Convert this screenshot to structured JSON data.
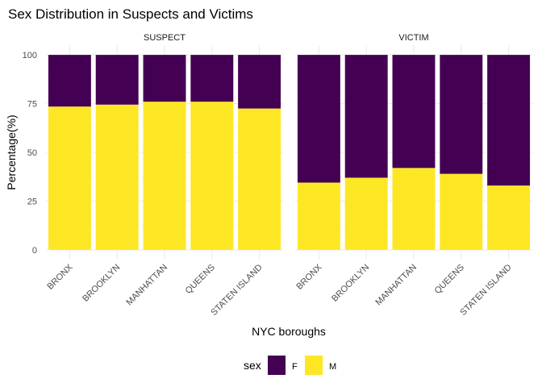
{
  "chart_data": {
    "type": "bar",
    "title": "Sex Distribution in Suspects and Victims",
    "xlabel": "NYC boroughs",
    "ylabel": "Percentage(%)",
    "ylim": [
      0,
      100
    ],
    "yticks": [
      "0",
      "25",
      "50",
      "75",
      "100"
    ],
    "stacked": true,
    "grid": true,
    "categories": [
      "BRONX",
      "BROOKLYN",
      "MANHATTAN",
      "QUEENS",
      "STATEN ISLAND"
    ],
    "legend": {
      "title": "sex",
      "position": "bottom",
      "entries": [
        {
          "label": "F",
          "color": "#440154"
        },
        {
          "label": "M",
          "color": "#fde725"
        }
      ]
    },
    "facets": [
      {
        "label": "SUSPECT",
        "series": [
          {
            "name": "M",
            "values": [
              73.5,
              74.5,
              76,
              76,
              72.5
            ]
          },
          {
            "name": "F",
            "values": [
              26.5,
              25.5,
              24,
              24,
              27.5
            ]
          }
        ]
      },
      {
        "label": "VICTIM",
        "series": [
          {
            "name": "M",
            "values": [
              34.5,
              37,
              42,
              39,
              33
            ]
          },
          {
            "name": "F",
            "values": [
              65.5,
              63,
              58,
              61,
              67
            ]
          }
        ]
      }
    ]
  }
}
